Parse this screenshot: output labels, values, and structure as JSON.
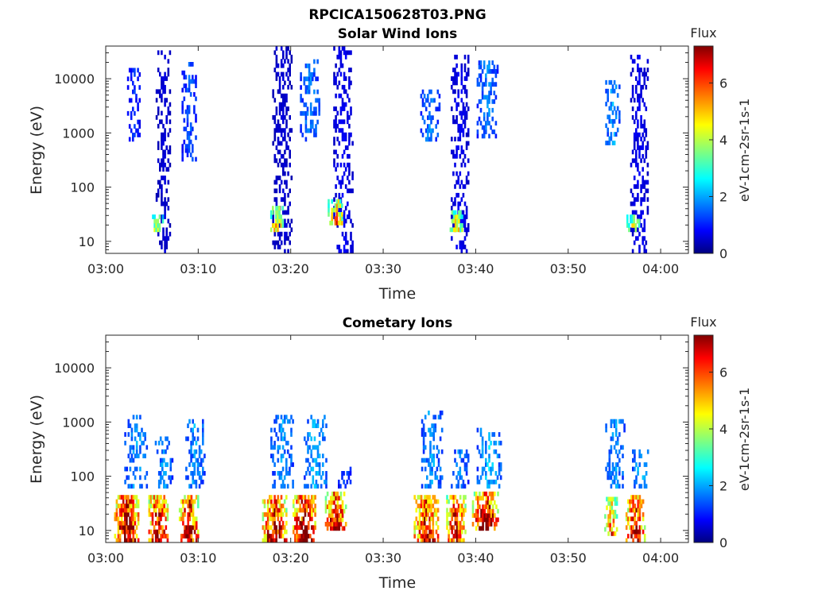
{
  "figure_title": "RPCICA150628T03.PNG",
  "chart_data": [
    {
      "type": "heatmap",
      "title": "Solar Wind Ions",
      "xlabel": "Time",
      "ylabel": "Energy (eV)",
      "x_ticks": [
        "03:00",
        "03:10",
        "03:20",
        "03:30",
        "03:40",
        "03:50",
        "04:00"
      ],
      "x_range_minutes": [
        0,
        63
      ],
      "y_scale": "log",
      "y_ticks": [
        "10",
        "100",
        "1000",
        "10000"
      ],
      "y_range": [
        6,
        40000
      ],
      "colorbar": {
        "title": "Flux",
        "label": "eV-1cm-2sr-1s-1",
        "range": [
          0,
          7.3
        ],
        "ticks": [
          "0",
          "2",
          "4",
          "6"
        ],
        "colormap": "jet"
      },
      "bursts": [
        {
          "t": 3.0,
          "e_lo": 700,
          "e_hi": 15000,
          "v": 1.2,
          "w": 1.4
        },
        {
          "t": 6.2,
          "e_lo": 6,
          "e_hi": 30000,
          "v": 0.6,
          "w": 1.6
        },
        {
          "t": 5.6,
          "e_lo": 15,
          "e_hi": 30,
          "v": 4.0,
          "w": 1.2
        },
        {
          "t": 9.0,
          "e_lo": 300,
          "e_hi": 17000,
          "v": 1.5,
          "w": 1.6
        },
        {
          "t": 19.0,
          "e_lo": 6,
          "e_hi": 35000,
          "v": 0.6,
          "w": 2.0
        },
        {
          "t": 18.4,
          "e_lo": 15,
          "e_hi": 40,
          "v": 4.5,
          "w": 1.6
        },
        {
          "t": 22.0,
          "e_lo": 700,
          "e_hi": 20000,
          "v": 1.8,
          "w": 2.0
        },
        {
          "t": 25.6,
          "e_lo": 6,
          "e_hi": 35000,
          "v": 0.8,
          "w": 2.0
        },
        {
          "t": 24.8,
          "e_lo": 20,
          "e_hi": 60,
          "v": 5.0,
          "w": 1.6
        },
        {
          "t": 35.0,
          "e_lo": 700,
          "e_hi": 6000,
          "v": 1.8,
          "w": 2.0
        },
        {
          "t": 38.2,
          "e_lo": 6,
          "e_hi": 25000,
          "v": 0.8,
          "w": 1.8
        },
        {
          "t": 37.8,
          "e_lo": 15,
          "e_hi": 35,
          "v": 4.2,
          "w": 1.6
        },
        {
          "t": 41.2,
          "e_lo": 800,
          "e_hi": 20000,
          "v": 1.8,
          "w": 2.2
        },
        {
          "t": 54.8,
          "e_lo": 600,
          "e_hi": 8000,
          "v": 2.0,
          "w": 1.6
        },
        {
          "t": 57.6,
          "e_lo": 6,
          "e_hi": 25000,
          "v": 0.8,
          "w": 1.8
        },
        {
          "t": 57.0,
          "e_lo": 15,
          "e_hi": 30,
          "v": 4.0,
          "w": 1.4
        }
      ]
    },
    {
      "type": "heatmap",
      "title": "Cometary Ions",
      "xlabel": "Time",
      "ylabel": "Energy (eV)",
      "x_ticks": [
        "03:00",
        "03:10",
        "03:20",
        "03:30",
        "03:40",
        "03:50",
        "04:00"
      ],
      "x_range_minutes": [
        0,
        63
      ],
      "y_scale": "log",
      "y_ticks": [
        "10",
        "100",
        "1000",
        "10000"
      ],
      "y_range": [
        6,
        40000
      ],
      "colorbar": {
        "title": "Flux",
        "label": "eV-1cm-2sr-1s-1",
        "range": [
          0,
          7.3
        ],
        "ticks": [
          "0",
          "2",
          "4",
          "6"
        ],
        "colormap": "jet"
      },
      "bursts": [
        {
          "t": 2.2,
          "e_lo": 6,
          "e_hi": 45,
          "v": 6.8,
          "w": 2.6
        },
        {
          "t": 5.6,
          "e_lo": 6,
          "e_hi": 45,
          "v": 6.6,
          "w": 2.0
        },
        {
          "t": 8.9,
          "e_lo": 6,
          "e_hi": 45,
          "v": 6.6,
          "w": 2.0
        },
        {
          "t": 18.2,
          "e_lo": 6,
          "e_hi": 45,
          "v": 6.4,
          "w": 2.6
        },
        {
          "t": 21.4,
          "e_lo": 6,
          "e_hi": 45,
          "v": 7.0,
          "w": 2.4
        },
        {
          "t": 24.8,
          "e_lo": 10,
          "e_hi": 45,
          "v": 6.6,
          "w": 2.2
        },
        {
          "t": 34.6,
          "e_lo": 6,
          "e_hi": 45,
          "v": 6.4,
          "w": 2.6
        },
        {
          "t": 37.8,
          "e_lo": 6,
          "e_hi": 45,
          "v": 6.4,
          "w": 2.0
        },
        {
          "t": 41.0,
          "e_lo": 10,
          "e_hi": 45,
          "v": 6.8,
          "w": 2.8
        },
        {
          "t": 54.6,
          "e_lo": 8,
          "e_hi": 35,
          "v": 5.0,
          "w": 1.4
        },
        {
          "t": 57.2,
          "e_lo": 6,
          "e_hi": 45,
          "v": 6.4,
          "w": 2.0
        },
        {
          "t": 3.2,
          "e_lo": 60,
          "e_hi": 1300,
          "v": 2.0,
          "w": 2.4
        },
        {
          "t": 6.2,
          "e_lo": 60,
          "e_hi": 500,
          "v": 2.0,
          "w": 1.8
        },
        {
          "t": 9.6,
          "e_lo": 60,
          "e_hi": 1100,
          "v": 2.0,
          "w": 2.0
        },
        {
          "t": 19.0,
          "e_lo": 60,
          "e_hi": 1300,
          "v": 2.0,
          "w": 2.4
        },
        {
          "t": 22.6,
          "e_lo": 60,
          "e_hi": 1300,
          "v": 2.2,
          "w": 2.4
        },
        {
          "t": 25.8,
          "e_lo": 60,
          "e_hi": 150,
          "v": 1.5,
          "w": 1.4
        },
        {
          "t": 35.2,
          "e_lo": 60,
          "e_hi": 1500,
          "v": 2.0,
          "w": 2.2
        },
        {
          "t": 38.2,
          "e_lo": 60,
          "e_hi": 300,
          "v": 1.8,
          "w": 1.8
        },
        {
          "t": 41.4,
          "e_lo": 60,
          "e_hi": 900,
          "v": 2.2,
          "w": 2.6
        },
        {
          "t": 55.0,
          "e_lo": 60,
          "e_hi": 1000,
          "v": 2.0,
          "w": 2.0
        },
        {
          "t": 57.8,
          "e_lo": 60,
          "e_hi": 300,
          "v": 2.2,
          "w": 1.8
        }
      ]
    }
  ]
}
